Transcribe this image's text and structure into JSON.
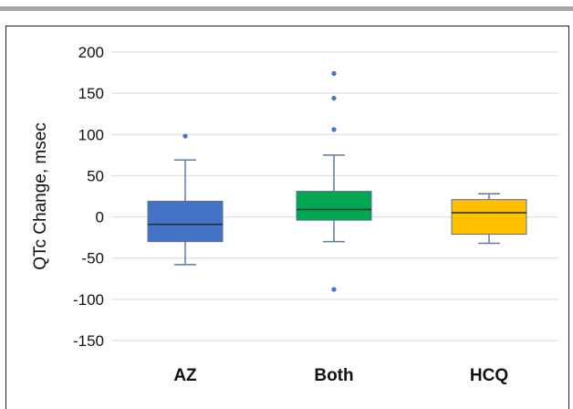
{
  "chart_data": {
    "type": "box",
    "xlabel": "",
    "ylabel": "QTc Change, msec",
    "ylim": [
      -150,
      200
    ],
    "yticks": [
      200,
      150,
      100,
      50,
      0,
      -50,
      -100,
      -150
    ],
    "grid": true,
    "categories": [
      "AZ",
      "Both",
      "HCQ"
    ],
    "colors": {
      "AZ": "#4472c4",
      "Both": "#00a651",
      "HCQ": "#ffc000",
      "whisker": "#5b7ba6",
      "outlier": "#4472c4"
    },
    "boxes": [
      {
        "name": "AZ",
        "whisker_low": -58,
        "q1": -30,
        "median": -9,
        "q3": 19,
        "whisker_high": 69,
        "outliers": [
          98
        ]
      },
      {
        "name": "Both",
        "whisker_low": -30,
        "q1": -4,
        "median": 9,
        "q3": 31,
        "whisker_high": 75,
        "outliers": [
          174,
          144,
          106,
          -88
        ]
      },
      {
        "name": "HCQ",
        "whisker_low": -32,
        "q1": -21,
        "median": 5,
        "q3": 21,
        "whisker_high": 28,
        "outliers": []
      }
    ]
  }
}
